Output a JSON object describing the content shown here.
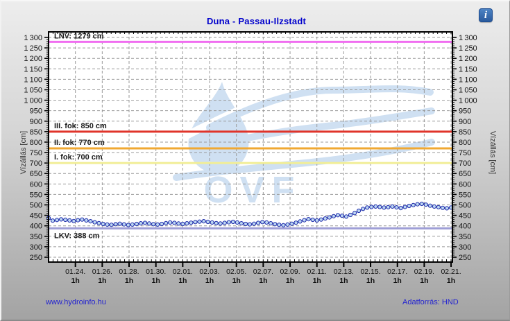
{
  "header": {
    "title_color": "#0000cc"
  },
  "info_button": {
    "label": "i",
    "name": "info"
  },
  "watermark": {
    "name": "OVF",
    "color": "#cfe0f2"
  },
  "footer": {
    "left_link": "www.hydroinfo.hu",
    "right_text": "Adatforrás: HND",
    "color": "#2323d0"
  },
  "chart_data": {
    "type": "line",
    "title": "Duna - Passau-Ilzstadt",
    "y_axis_label_left": "Vízállás [cm]",
    "y_axis_label_right": "Vízállás [cm]",
    "ylim": [
      250,
      1300
    ],
    "y_tick_step": 50,
    "y_minor_step": 10,
    "grid": true,
    "grid_color": "#999999",
    "x_domain_days": [
      0,
      30.1
    ],
    "x_minor_step_days": 0.3333,
    "x_ticks": [
      {
        "date": "01.24.",
        "sub": "1h",
        "day": 2
      },
      {
        "date": "01.26.",
        "sub": "1h",
        "day": 4
      },
      {
        "date": "01.28.",
        "sub": "1h",
        "day": 6
      },
      {
        "date": "01.30.",
        "sub": "1h",
        "day": 8
      },
      {
        "date": "02.01.",
        "sub": "1h",
        "day": 10
      },
      {
        "date": "02.03.",
        "sub": "1h",
        "day": 12
      },
      {
        "date": "02.05.",
        "sub": "1h",
        "day": 14
      },
      {
        "date": "02.07.",
        "sub": "1h",
        "day": 16
      },
      {
        "date": "02.09.",
        "sub": "1h",
        "day": 18
      },
      {
        "date": "02.11.",
        "sub": "1h",
        "day": 20
      },
      {
        "date": "02.13.",
        "sub": "1h",
        "day": 22
      },
      {
        "date": "02.15.",
        "sub": "1h",
        "day": 24
      },
      {
        "date": "02.17.",
        "sub": "1h",
        "day": 26
      },
      {
        "date": "02.19.",
        "sub": "1h",
        "day": 28
      },
      {
        "date": "02.21.",
        "sub": "1h",
        "day": 30
      }
    ],
    "reference_lines": [
      {
        "label": "LNV: 1279 cm",
        "value": 1279,
        "color": "#f06ef0",
        "label_side": "above"
      },
      {
        "label": "III. fok: 850 cm",
        "value": 850,
        "color": "#e0342a",
        "label_side": "above"
      },
      {
        "label": "II. fok: 770 cm",
        "value": 770,
        "color": "#f0a832",
        "label_side": "above"
      },
      {
        "label": "I. fok: 700 cm",
        "value": 700,
        "color": "#f1ee96",
        "label_side": "above"
      },
      {
        "label": "LKV: 388 cm",
        "value": 388,
        "color": "#9e9ed6",
        "label_side": "below"
      }
    ],
    "series": [
      {
        "name": "vízállás",
        "line_color": "#2433b8",
        "marker_fill": "#bcd6f2",
        "marker_stroke": "#1f2daa",
        "start_day": 0,
        "end_day": 30,
        "values": [
          437,
          425,
          428,
          431,
          429,
          426,
          423,
          427,
          430,
          426,
          422,
          417,
          413,
          409,
          406,
          405,
          408,
          410,
          407,
          404,
          406,
          409,
          412,
          414,
          411,
          408,
          406,
          409,
          413,
          416,
          414,
          411,
          409,
          412,
          415,
          418,
          420,
          422,
          419,
          416,
          413,
          411,
          414,
          417,
          419,
          416,
          412,
          409,
          407,
          410,
          414,
          418,
          416,
          412,
          408,
          405,
          403,
          406,
          410,
          415,
          421,
          427,
          432,
          429,
          426,
          430,
          435,
          440,
          446,
          451,
          448,
          444,
          452,
          461,
          472,
          481,
          487,
          490,
          492,
          490,
          487,
          489,
          492,
          488,
          485,
          490,
          495,
          499,
          503,
          505,
          501,
          496,
          492,
          489,
          486,
          484,
          487
        ]
      }
    ]
  }
}
